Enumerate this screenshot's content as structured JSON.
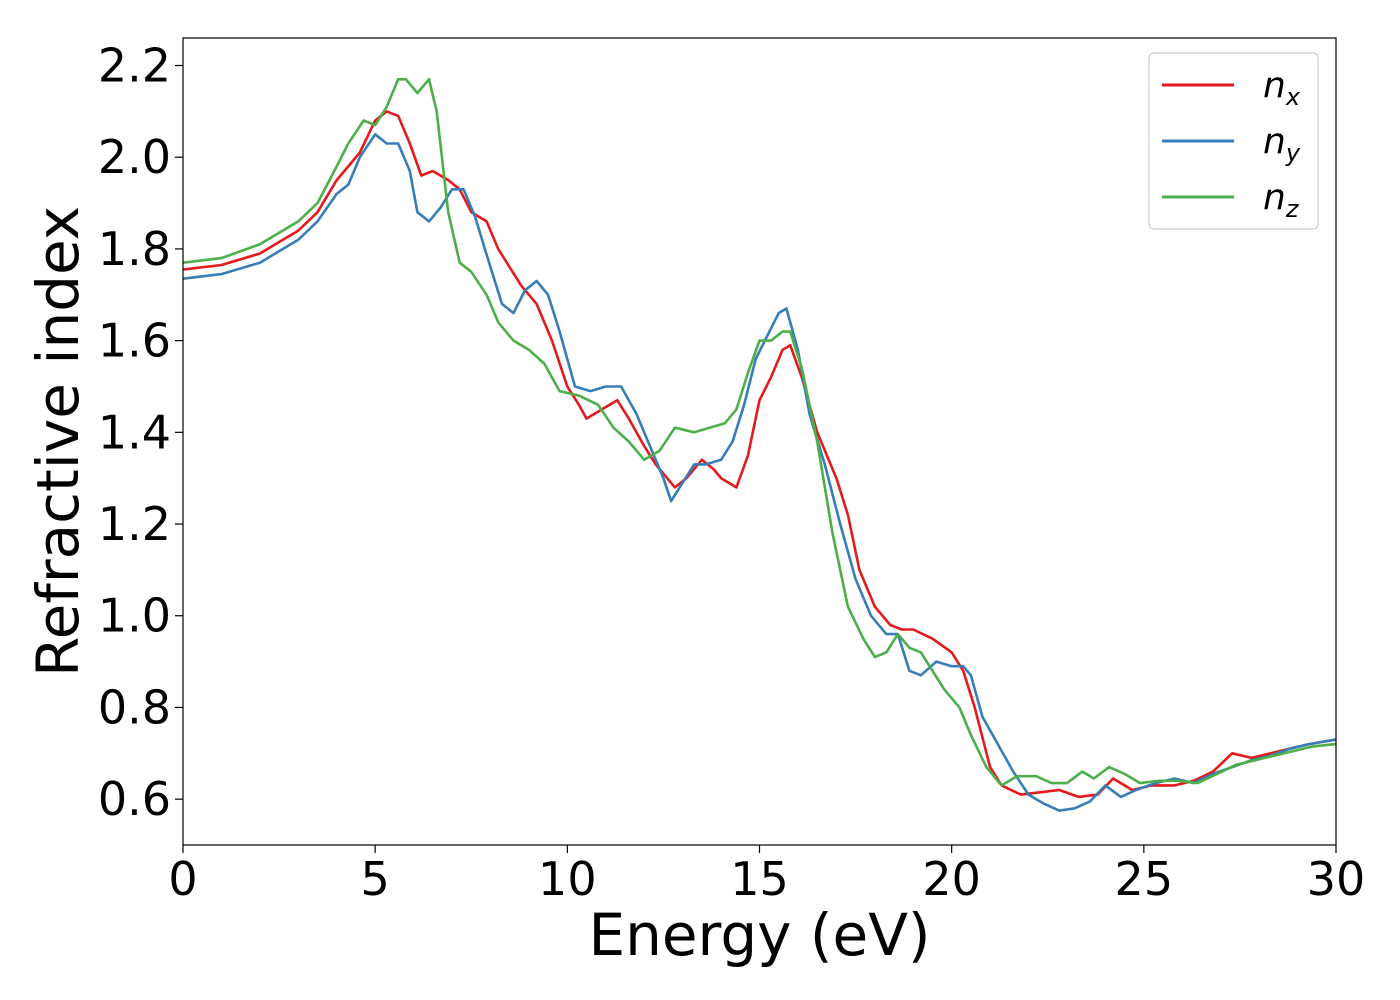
{
  "chart_data": {
    "type": "line",
    "title": "",
    "xlabel": "Energy (eV)",
    "ylabel": "Refractive index",
    "xlim": [
      0,
      30
    ],
    "ylim": [
      0.5,
      2.26
    ],
    "xticks": [
      0,
      5,
      10,
      15,
      20,
      25,
      30
    ],
    "xtick_labels": [
      "0",
      "5",
      "10",
      "15",
      "20",
      "25",
      "30"
    ],
    "yticks": [
      0.6,
      0.8,
      1.0,
      1.2,
      1.4,
      1.6,
      1.8,
      2.0,
      2.2
    ],
    "ytick_labels": [
      "0.6",
      "0.8",
      "1.0",
      "1.2",
      "1.4",
      "1.6",
      "1.8",
      "2.0",
      "2.2"
    ],
    "grid": false,
    "legend_position": "top-right",
    "series": [
      {
        "name": "n_x",
        "label_base": "n",
        "label_sub": "x",
        "color": "#e41a1c",
        "points": [
          [
            0,
            1.755
          ],
          [
            1,
            1.765
          ],
          [
            2,
            1.79
          ],
          [
            3,
            1.84
          ],
          [
            3.5,
            1.88
          ],
          [
            4,
            1.95
          ],
          [
            4.3,
            1.98
          ],
          [
            4.6,
            2.01
          ],
          [
            5,
            2.08
          ],
          [
            5.3,
            2.1
          ],
          [
            5.6,
            2.09
          ],
          [
            5.9,
            2.03
          ],
          [
            6.2,
            1.96
          ],
          [
            6.5,
            1.97
          ],
          [
            6.9,
            1.95
          ],
          [
            7.2,
            1.93
          ],
          [
            7.5,
            1.88
          ],
          [
            7.9,
            1.86
          ],
          [
            8.2,
            1.8
          ],
          [
            8.5,
            1.76
          ],
          [
            8.8,
            1.72
          ],
          [
            9.2,
            1.68
          ],
          [
            9.6,
            1.6
          ],
          [
            10,
            1.5
          ],
          [
            10.3,
            1.46
          ],
          [
            10.5,
            1.43
          ],
          [
            10.9,
            1.45
          ],
          [
            11.3,
            1.47
          ],
          [
            11.6,
            1.43
          ],
          [
            12,
            1.37
          ],
          [
            12.3,
            1.33
          ],
          [
            12.8,
            1.28
          ],
          [
            13.1,
            1.3
          ],
          [
            13.5,
            1.34
          ],
          [
            13.8,
            1.32
          ],
          [
            14,
            1.3
          ],
          [
            14.4,
            1.28
          ],
          [
            14.7,
            1.35
          ],
          [
            15,
            1.47
          ],
          [
            15.3,
            1.52
          ],
          [
            15.6,
            1.58
          ],
          [
            15.8,
            1.59
          ],
          [
            16.1,
            1.52
          ],
          [
            16.5,
            1.4
          ],
          [
            17,
            1.3
          ],
          [
            17.3,
            1.22
          ],
          [
            17.6,
            1.1
          ],
          [
            18,
            1.02
          ],
          [
            18.4,
            0.98
          ],
          [
            18.7,
            0.97
          ],
          [
            19,
            0.97
          ],
          [
            19.5,
            0.95
          ],
          [
            20,
            0.92
          ],
          [
            20.3,
            0.88
          ],
          [
            20.6,
            0.8
          ],
          [
            21,
            0.67
          ],
          [
            21.3,
            0.63
          ],
          [
            21.8,
            0.61
          ],
          [
            22.3,
            0.615
          ],
          [
            22.8,
            0.62
          ],
          [
            23.3,
            0.605
          ],
          [
            23.8,
            0.61
          ],
          [
            24.2,
            0.645
          ],
          [
            24.7,
            0.62
          ],
          [
            25.2,
            0.63
          ],
          [
            25.8,
            0.63
          ],
          [
            26.3,
            0.64
          ],
          [
            26.8,
            0.66
          ],
          [
            27.3,
            0.7
          ],
          [
            27.8,
            0.69
          ],
          [
            28.3,
            0.7
          ],
          [
            28.8,
            0.71
          ],
          [
            29.3,
            0.72
          ],
          [
            30,
            0.73
          ]
        ]
      },
      {
        "name": "n_y",
        "label_base": "n",
        "label_sub": "y",
        "color": "#377eb8",
        "points": [
          [
            0,
            1.735
          ],
          [
            1,
            1.745
          ],
          [
            2,
            1.77
          ],
          [
            3,
            1.82
          ],
          [
            3.5,
            1.86
          ],
          [
            4,
            1.92
          ],
          [
            4.3,
            1.94
          ],
          [
            4.6,
            2.0
          ],
          [
            5,
            2.05
          ],
          [
            5.3,
            2.03
          ],
          [
            5.6,
            2.03
          ],
          [
            5.9,
            1.97
          ],
          [
            6.1,
            1.88
          ],
          [
            6.4,
            1.86
          ],
          [
            6.7,
            1.89
          ],
          [
            7,
            1.93
          ],
          [
            7.3,
            1.93
          ],
          [
            7.6,
            1.87
          ],
          [
            8,
            1.76
          ],
          [
            8.3,
            1.68
          ],
          [
            8.6,
            1.66
          ],
          [
            8.9,
            1.71
          ],
          [
            9.2,
            1.73
          ],
          [
            9.5,
            1.7
          ],
          [
            9.8,
            1.62
          ],
          [
            10.2,
            1.5
          ],
          [
            10.6,
            1.49
          ],
          [
            11,
            1.5
          ],
          [
            11.4,
            1.5
          ],
          [
            11.8,
            1.44
          ],
          [
            12.2,
            1.36
          ],
          [
            12.5,
            1.3
          ],
          [
            12.7,
            1.25
          ],
          [
            13,
            1.29
          ],
          [
            13.3,
            1.33
          ],
          [
            13.6,
            1.33
          ],
          [
            14,
            1.34
          ],
          [
            14.3,
            1.38
          ],
          [
            14.6,
            1.46
          ],
          [
            14.9,
            1.56
          ],
          [
            15.2,
            1.61
          ],
          [
            15.5,
            1.66
          ],
          [
            15.7,
            1.67
          ],
          [
            16,
            1.58
          ],
          [
            16.3,
            1.44
          ],
          [
            16.7,
            1.33
          ],
          [
            17.1,
            1.2
          ],
          [
            17.5,
            1.08
          ],
          [
            17.9,
            1.0
          ],
          [
            18.3,
            0.96
          ],
          [
            18.6,
            0.96
          ],
          [
            18.9,
            0.88
          ],
          [
            19.2,
            0.87
          ],
          [
            19.6,
            0.9
          ],
          [
            20,
            0.89
          ],
          [
            20.3,
            0.89
          ],
          [
            20.5,
            0.87
          ],
          [
            20.8,
            0.78
          ],
          [
            21.2,
            0.72
          ],
          [
            21.6,
            0.66
          ],
          [
            22,
            0.61
          ],
          [
            22.4,
            0.59
          ],
          [
            22.8,
            0.575
          ],
          [
            23.2,
            0.58
          ],
          [
            23.6,
            0.595
          ],
          [
            24,
            0.63
          ],
          [
            24.4,
            0.605
          ],
          [
            24.8,
            0.62
          ],
          [
            25.3,
            0.635
          ],
          [
            25.8,
            0.645
          ],
          [
            26.3,
            0.635
          ],
          [
            26.8,
            0.655
          ],
          [
            27.3,
            0.67
          ],
          [
            27.8,
            0.685
          ],
          [
            28.3,
            0.695
          ],
          [
            28.8,
            0.71
          ],
          [
            29.3,
            0.72
          ],
          [
            30,
            0.73
          ]
        ]
      },
      {
        "name": "n_z",
        "label_base": "n",
        "label_sub": "z",
        "color": "#4daf4a",
        "points": [
          [
            0,
            1.77
          ],
          [
            1,
            1.78
          ],
          [
            2,
            1.81
          ],
          [
            3,
            1.86
          ],
          [
            3.5,
            1.9
          ],
          [
            4,
            1.98
          ],
          [
            4.3,
            2.03
          ],
          [
            4.7,
            2.08
          ],
          [
            5,
            2.07
          ],
          [
            5.3,
            2.11
          ],
          [
            5.6,
            2.17
          ],
          [
            5.8,
            2.17
          ],
          [
            6.1,
            2.14
          ],
          [
            6.4,
            2.17
          ],
          [
            6.6,
            2.1
          ],
          [
            6.9,
            1.88
          ],
          [
            7.2,
            1.77
          ],
          [
            7.5,
            1.75
          ],
          [
            7.9,
            1.7
          ],
          [
            8.2,
            1.64
          ],
          [
            8.6,
            1.6
          ],
          [
            9,
            1.58
          ],
          [
            9.4,
            1.55
          ],
          [
            9.8,
            1.49
          ],
          [
            10.3,
            1.48
          ],
          [
            10.8,
            1.46
          ],
          [
            11.2,
            1.41
          ],
          [
            11.6,
            1.38
          ],
          [
            12,
            1.34
          ],
          [
            12.4,
            1.36
          ],
          [
            12.8,
            1.41
          ],
          [
            13.3,
            1.4
          ],
          [
            13.7,
            1.41
          ],
          [
            14.1,
            1.42
          ],
          [
            14.4,
            1.45
          ],
          [
            14.7,
            1.53
          ],
          [
            15,
            1.6
          ],
          [
            15.3,
            1.6
          ],
          [
            15.6,
            1.62
          ],
          [
            15.8,
            1.62
          ],
          [
            16.1,
            1.54
          ],
          [
            16.5,
            1.38
          ],
          [
            16.9,
            1.18
          ],
          [
            17.3,
            1.02
          ],
          [
            17.7,
            0.95
          ],
          [
            18,
            0.91
          ],
          [
            18.3,
            0.92
          ],
          [
            18.6,
            0.96
          ],
          [
            18.9,
            0.93
          ],
          [
            19.2,
            0.92
          ],
          [
            19.5,
            0.88
          ],
          [
            19.8,
            0.84
          ],
          [
            20.2,
            0.8
          ],
          [
            20.5,
            0.74
          ],
          [
            20.9,
            0.67
          ],
          [
            21.3,
            0.63
          ],
          [
            21.7,
            0.65
          ],
          [
            22.2,
            0.65
          ],
          [
            22.6,
            0.635
          ],
          [
            23,
            0.635
          ],
          [
            23.4,
            0.66
          ],
          [
            23.7,
            0.645
          ],
          [
            24.1,
            0.67
          ],
          [
            24.5,
            0.655
          ],
          [
            24.9,
            0.635
          ],
          [
            25.4,
            0.64
          ],
          [
            25.9,
            0.64
          ],
          [
            26.4,
            0.635
          ],
          [
            26.9,
            0.655
          ],
          [
            27.4,
            0.675
          ],
          [
            27.9,
            0.685
          ],
          [
            28.4,
            0.695
          ],
          [
            28.9,
            0.705
          ],
          [
            29.4,
            0.715
          ],
          [
            30,
            0.72
          ]
        ]
      }
    ]
  }
}
